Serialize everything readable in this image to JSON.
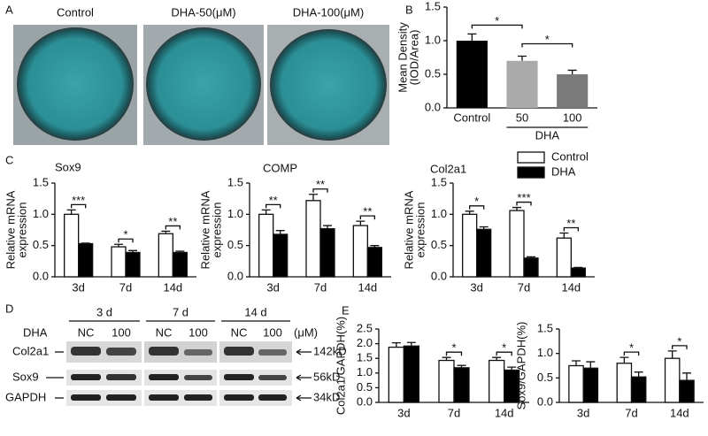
{
  "panel_labels": [
    "A",
    "B",
    "C",
    "D",
    "E"
  ],
  "wells": {
    "labels": [
      "Control",
      "DHA-50(μM)",
      "DHA-100(μM)"
    ]
  },
  "blot": {
    "times": [
      "3 d",
      "7 d",
      "14 d"
    ],
    "treatment": "DHA",
    "doses": [
      "NC",
      "100"
    ],
    "unit": "(μM)",
    "proteins": [
      "Col2a1",
      "Sox9",
      "GAPDH"
    ],
    "sizes": [
      "142kD",
      "56kD",
      "34kD"
    ]
  },
  "chart_data": [
    {
      "type": "bar",
      "categories": [
        "Control",
        "50",
        "100"
      ],
      "group_label": "DHA",
      "values": [
        1.0,
        0.7,
        0.5
      ],
      "errors": [
        0.1,
        0.07,
        0.06
      ],
      "colors": [
        "#000000",
        "#aaaaaa",
        "#7a7a7a"
      ],
      "ylabel": [
        "Mean Density",
        "(IOD/Area)"
      ],
      "ylim": [
        0,
        1.5
      ],
      "yticks": [
        {
          "value": 0,
          "label": "0.0"
        },
        0.5,
        {
          "value": 1,
          "label": "1.0"
        },
        1.5
      ],
      "annotations": [
        "*",
        "*"
      ]
    },
    {
      "type": "grouped_bar",
      "title": "Sox9",
      "categories": [
        "3d",
        "7d",
        "14d"
      ],
      "series": [
        {
          "color": "#ffffff",
          "values": [
            1.0,
            0.48,
            0.69
          ],
          "errors": [
            0.07,
            0.04,
            0.04
          ]
        },
        {
          "color": "#000000",
          "values": [
            0.53,
            0.39,
            0.39
          ],
          "errors": [
            0.01,
            0.03,
            0.02
          ]
        }
      ],
      "ylabel": [
        "Relative mRNA",
        "expression"
      ],
      "ylim": [
        0,
        1.5
      ],
      "yticks": [
        {
          "value": 0,
          "label": "0.0"
        },
        0.5,
        {
          "value": 1,
          "label": "1.0"
        },
        1.5
      ],
      "annotations": [
        "***",
        "*",
        "**"
      ]
    },
    {
      "type": "grouped_bar",
      "title": "COMP",
      "categories": [
        "3d",
        "7d",
        "14d"
      ],
      "series": [
        {
          "color": "#ffffff",
          "values": [
            1.0,
            1.22,
            0.82
          ],
          "errors": [
            0.07,
            0.1,
            0.07
          ]
        },
        {
          "color": "#000000",
          "values": [
            0.68,
            0.77,
            0.47
          ],
          "errors": [
            0.06,
            0.05,
            0.03
          ]
        }
      ],
      "ylabel": [
        "Relative mRNA",
        "expression"
      ],
      "ylim": [
        0,
        1.5
      ],
      "yticks": [
        {
          "value": 0,
          "label": "0.0"
        },
        0.5,
        {
          "value": 1,
          "label": "1.0"
        },
        1.5
      ],
      "annotations": [
        "**",
        "**",
        "**"
      ]
    },
    {
      "type": "grouped_bar",
      "title": "Col2a1",
      "categories": [
        "3d",
        "7d",
        "14d"
      ],
      "series": [
        {
          "name": "Control",
          "color": "#ffffff",
          "values": [
            1.0,
            1.06,
            0.62
          ],
          "errors": [
            0.05,
            0.05,
            0.08
          ]
        },
        {
          "name": "DHA",
          "color": "#000000",
          "values": [
            0.76,
            0.3,
            0.14
          ],
          "errors": [
            0.04,
            0.02,
            0.01
          ]
        }
      ],
      "ylabel": [
        "Relative mRNA",
        "expression"
      ],
      "ylim": [
        0,
        1.5
      ],
      "yticks": [
        {
          "value": 0,
          "label": "0.0"
        },
        0.5,
        {
          "value": 1,
          "label": "1.0"
        },
        1.5
      ],
      "annotations": [
        "*",
        "***",
        "**"
      ]
    },
    {
      "type": "grouped_bar",
      "categories": [
        "3d",
        "7d",
        "14d"
      ],
      "series": [
        {
          "color": "#ffffff",
          "values": [
            1.88,
            1.43,
            1.43
          ],
          "errors": [
            0.15,
            0.1,
            0.1
          ]
        },
        {
          "color": "#000000",
          "values": [
            1.92,
            1.18,
            1.1
          ],
          "errors": [
            0.12,
            0.08,
            0.1
          ]
        }
      ],
      "ylabel": "Col2a1/GAPDH(%)",
      "ylim": [
        0,
        2.5
      ],
      "yticks": [
        {
          "value": 0,
          "label": "0.0"
        },
        0.5,
        {
          "value": 1,
          "label": "1.0"
        },
        1.5,
        {
          "value": 2,
          "label": "2.0"
        },
        2.5
      ],
      "annotations": [
        null,
        "*",
        "*"
      ]
    },
    {
      "type": "grouped_bar",
      "categories": [
        "3d",
        "7d",
        "14d"
      ],
      "series": [
        {
          "color": "#ffffff",
          "values": [
            0.75,
            0.8,
            0.9
          ],
          "errors": [
            0.1,
            0.12,
            0.15
          ]
        },
        {
          "color": "#000000",
          "values": [
            0.7,
            0.52,
            0.45
          ],
          "errors": [
            0.13,
            0.1,
            0.15
          ]
        }
      ],
      "ylabel": "Sox9/GAPDH(%)",
      "ylim": [
        0,
        1.5
      ],
      "yticks": [
        {
          "value": 0,
          "label": "0.0"
        },
        0.5,
        {
          "value": 1,
          "label": "1.0"
        },
        1.5
      ],
      "annotations": [
        null,
        "*",
        "*"
      ]
    }
  ]
}
